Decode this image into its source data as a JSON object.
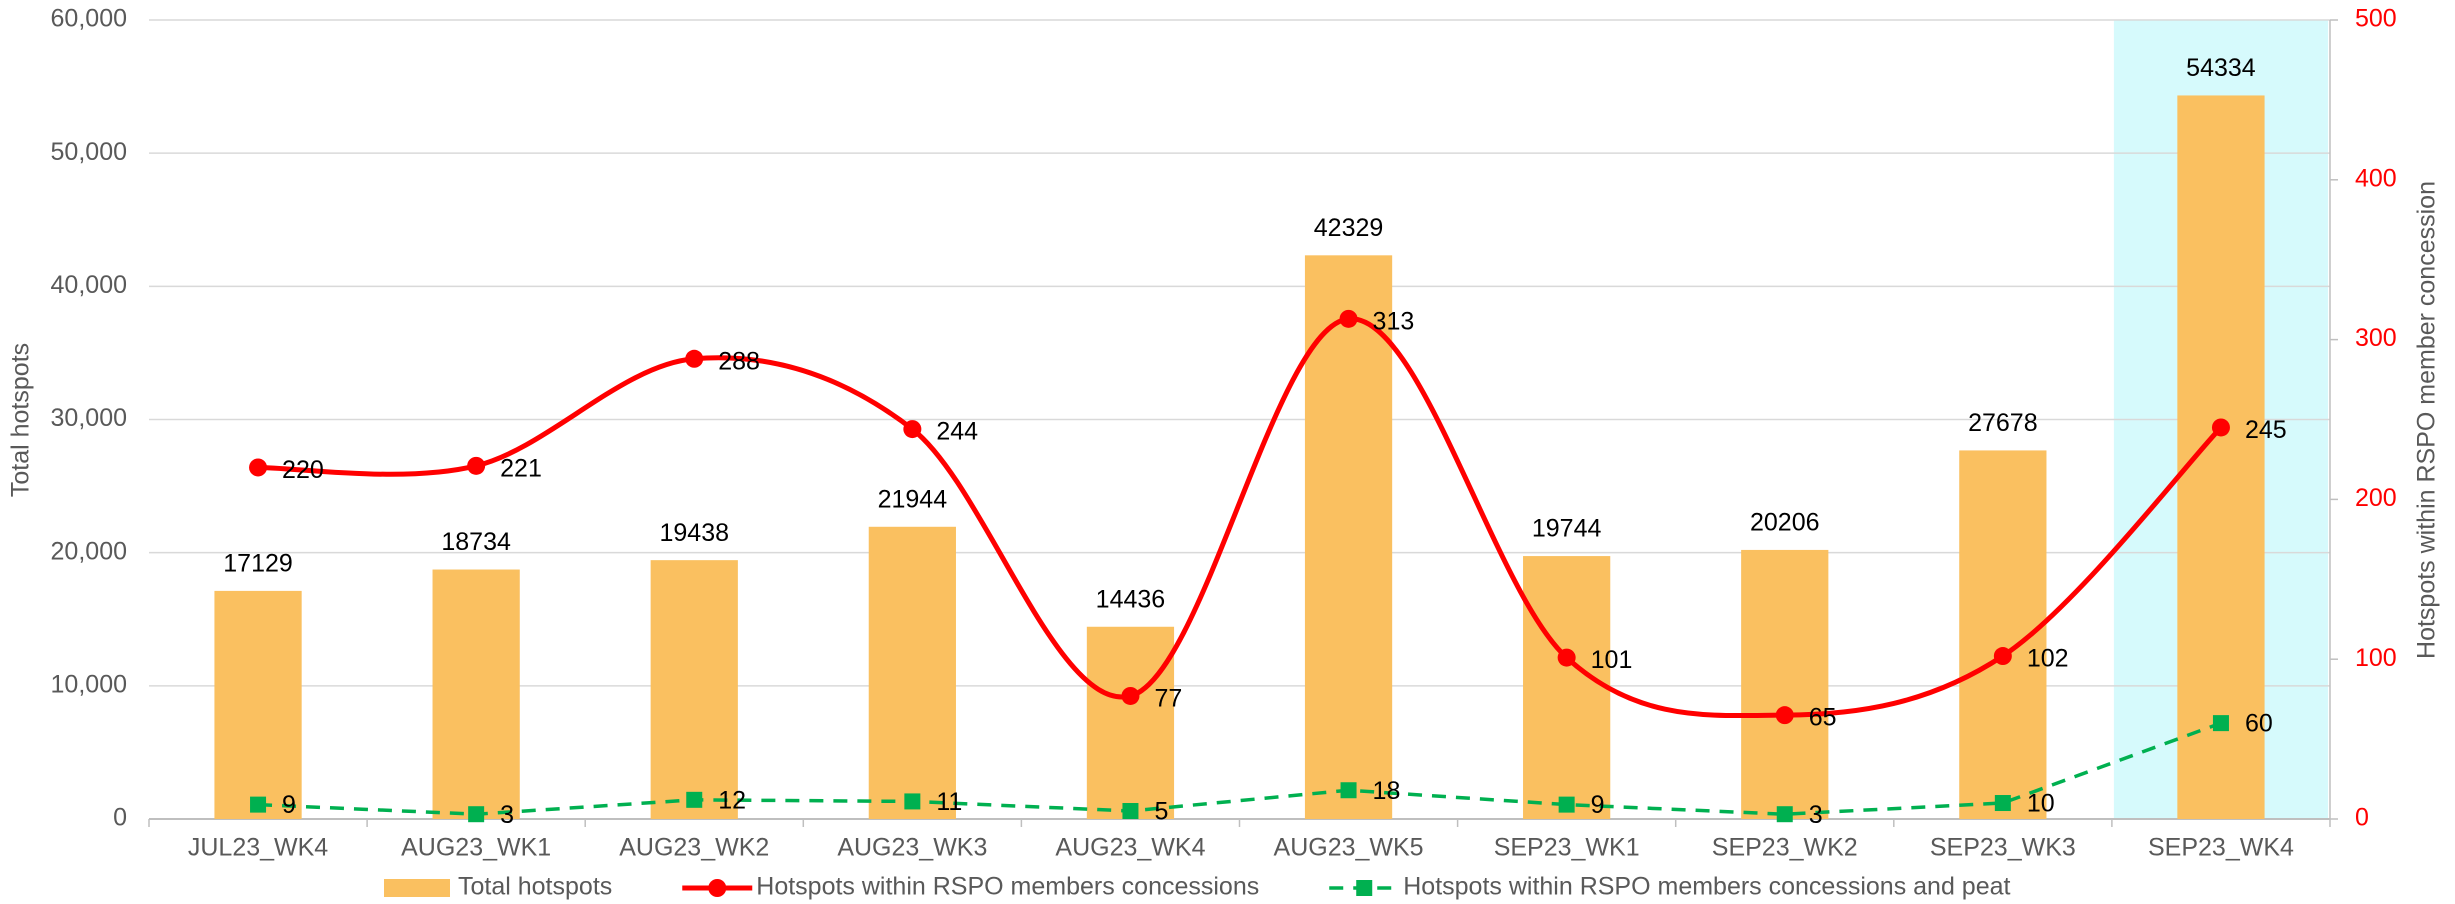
{
  "chart_data": {
    "type": "bar_line",
    "categories": [
      "JUL23_WK4",
      "AUG23_WK1",
      "AUG23_WK2",
      "AUG23_WK3",
      "AUG23_WK4",
      "AUG23_WK5",
      "SEP23_WK1",
      "SEP23_WK2",
      "SEP23_WK3",
      "SEP23_WK4"
    ],
    "y_label": "Total hotspots",
    "y2_label": "Hotspots within RSPO member concession",
    "ylim": [
      0,
      60000
    ],
    "yticks": [
      0,
      {
        "value": 10000,
        "label": "10,000"
      },
      {
        "value": 20000,
        "label": "20,000"
      },
      {
        "value": 30000,
        "label": "30,000"
      },
      {
        "value": 40000,
        "label": "40,000"
      },
      {
        "value": 50000,
        "label": "50,000"
      },
      {
        "value": 60000,
        "label": "60,000"
      }
    ],
    "y2lim": [
      0,
      500
    ],
    "y2ticks": [
      0,
      100,
      200,
      300,
      400,
      500
    ],
    "y2_color": "#ff0000",
    "grid": true,
    "legend": "bottom",
    "highlight": {
      "category_index": 9,
      "color": "#d6fafc"
    },
    "series": [
      {
        "name": "Total hotspots",
        "type": "bar",
        "color": "#fac060",
        "values": [
          17129,
          18734,
          19438,
          21944,
          14436,
          42329,
          19744,
          20206,
          27678,
          54334
        ]
      },
      {
        "name": "Hotspots within RSPO members concessions",
        "type": "line",
        "axis": "y2",
        "color": "#ff0000",
        "smooth": true,
        "values": [
          220,
          221,
          288,
          244,
          77,
          313,
          101,
          65,
          102,
          245
        ]
      },
      {
        "name": "Hotspots within RSPO members concessions and peat",
        "type": "line",
        "axis": "y2",
        "color": "#00b050",
        "dashed": true,
        "values": [
          9,
          3,
          12,
          11,
          5,
          18,
          9,
          3,
          10,
          60
        ]
      }
    ]
  }
}
